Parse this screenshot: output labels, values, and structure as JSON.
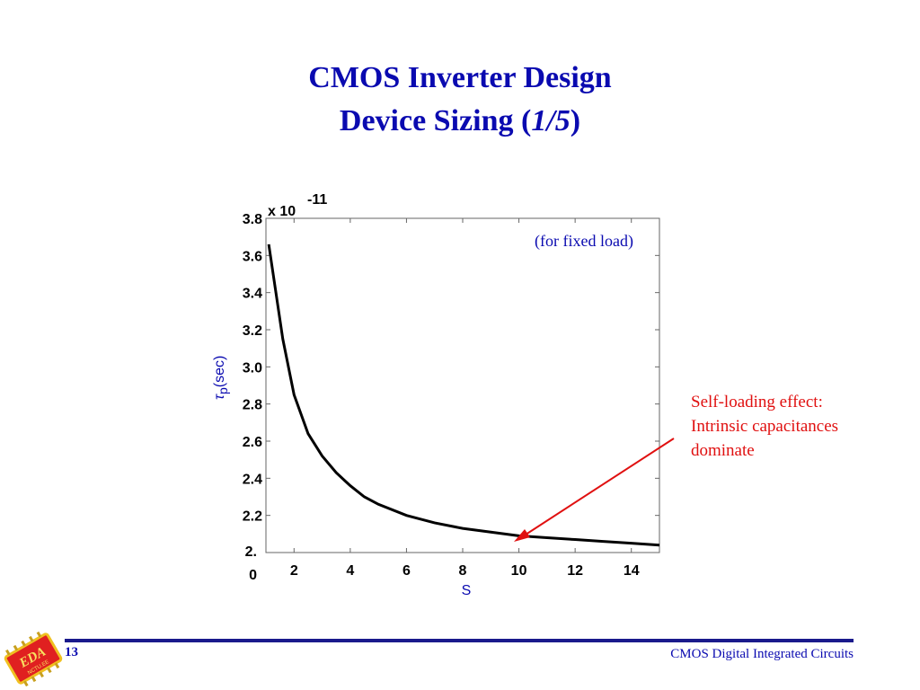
{
  "slide": {
    "title_line1": "CMOS Inverter Design",
    "title_line2_prefix": "Device Sizing (",
    "title_line2_em": "1/5",
    "title_line2_suffix": ")",
    "page_number": "13",
    "footer": "CMOS Digital Integrated Circuits",
    "logo_text": "EDA",
    "logo_subtext": "NCTU.EE"
  },
  "callout": {
    "lines": [
      "Self-loading effect:",
      "Intrinsic capacitances",
      "dominate"
    ],
    "color": "#e01010"
  },
  "chart_data": {
    "type": "line",
    "xlabel": "S",
    "ylabel": "tp(sec)",
    "ylabel_symbol": "τ",
    "ylabel_sub": "p",
    "ylabel_unit": "(sec)",
    "y_exponent_base": "x 10",
    "y_exponent_power": "-11",
    "annotation": "(for fixed load)",
    "xlim": [
      1,
      15
    ],
    "ylim": [
      2.0,
      3.8
    ],
    "x_ticks": [
      2,
      4,
      6,
      8,
      10,
      12,
      14
    ],
    "x_tick_labels": [
      "2",
      "4",
      "6",
      "8",
      "10",
      "12",
      "14"
    ],
    "y_ticks": [
      2.0,
      2.2,
      2.4,
      2.6,
      2.8,
      3.0,
      3.2,
      3.4,
      3.6,
      3.8
    ],
    "y_tick_labels": [
      "2.\n0",
      "2.2",
      "2.4",
      "2.6",
      "2.8",
      "3.0",
      "3.2",
      "3.4",
      "3.6",
      "3.8"
    ],
    "grid": false,
    "line_color": "#000000",
    "series": [
      {
        "x": [
          1.1,
          1.6,
          2.0,
          2.5,
          3.0,
          3.5,
          4.0,
          4.5,
          5.0,
          6.0,
          7.0,
          8.0,
          9.0,
          10.0,
          11.0,
          12.0,
          13.0,
          14.0,
          15.0
        ],
        "y": [
          3.66,
          3.15,
          2.85,
          2.64,
          2.52,
          2.43,
          2.36,
          2.3,
          2.26,
          2.2,
          2.16,
          2.13,
          2.11,
          2.09,
          2.08,
          2.07,
          2.06,
          2.05,
          2.04
        ]
      }
    ]
  }
}
